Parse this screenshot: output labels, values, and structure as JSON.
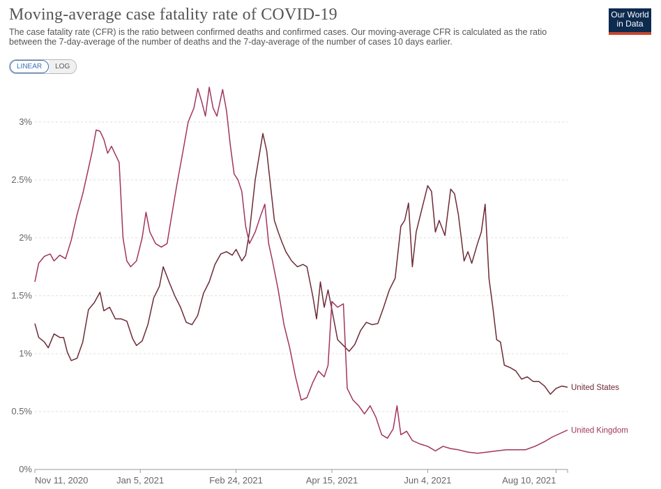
{
  "header": {
    "title": "Moving-average case fatality rate of COVID-19",
    "subtitle": "The case fatality rate (CFR) is the ratio between confirmed deaths and confirmed cases. Our moving-average CFR is calculated as the ratio between the 7-day-average of the number of deaths and the 7-day-average of the number of cases 10 days earlier.",
    "logo_line1": "Our World",
    "logo_line2": "in Data"
  },
  "scale_toggle": {
    "linear_label": "LINEAR",
    "log_label": "LOG",
    "selected": "LINEAR"
  },
  "colors": {
    "united_states": "#6b2a35",
    "united_kingdom": "#a1345f",
    "grid": "#dddddd",
    "axis_text": "#666666"
  },
  "chart_data": {
    "type": "line",
    "title": "Moving-average case fatality rate of COVID-19",
    "x_axis": {
      "start": "2020-11-11",
      "end": "2021-08-16",
      "ticks": [
        {
          "date": "2020-11-11",
          "label": "Nov 11, 2020"
        },
        {
          "date": "2021-01-05",
          "label": "Jan 5, 2021"
        },
        {
          "date": "2021-02-24",
          "label": "Feb 24, 2021"
        },
        {
          "date": "2021-04-15",
          "label": "Apr 15, 2021"
        },
        {
          "date": "2021-06-04",
          "label": "Jun 4, 2021"
        },
        {
          "date": "2021-08-10",
          "label": "Aug 10, 2021"
        }
      ]
    },
    "y_axis": {
      "ylim": [
        0,
        3.3
      ],
      "unit": "%",
      "ticks": [
        {
          "value": 0,
          "label": "0%"
        },
        {
          "value": 0.5,
          "label": "0.5%"
        },
        {
          "value": 1,
          "label": "1%"
        },
        {
          "value": 1.5,
          "label": "1.5%"
        },
        {
          "value": 2,
          "label": "2%"
        },
        {
          "value": 2.5,
          "label": "2.5%"
        },
        {
          "value": 3,
          "label": "3%"
        }
      ]
    },
    "grid": "horizontal-dashed",
    "legend": "line-end labels",
    "series": [
      {
        "name": "United States",
        "points": [
          [
            "2020-11-11",
            1.26
          ],
          [
            "2020-11-13",
            1.14
          ],
          [
            "2020-11-16",
            1.1
          ],
          [
            "2020-11-18",
            1.05
          ],
          [
            "2020-11-21",
            1.17
          ],
          [
            "2020-11-24",
            1.14
          ],
          [
            "2020-11-26",
            1.14
          ],
          [
            "2020-11-28",
            1.01
          ],
          [
            "2020-11-30",
            0.94
          ],
          [
            "2020-12-03",
            0.96
          ],
          [
            "2020-12-06",
            1.1
          ],
          [
            "2020-12-09",
            1.38
          ],
          [
            "2020-12-12",
            1.44
          ],
          [
            "2020-12-15",
            1.53
          ],
          [
            "2020-12-17",
            1.37
          ],
          [
            "2020-12-20",
            1.4
          ],
          [
            "2020-12-23",
            1.3
          ],
          [
            "2020-12-26",
            1.3
          ],
          [
            "2020-12-29",
            1.28
          ],
          [
            "2021-01-01",
            1.13
          ],
          [
            "2021-01-03",
            1.07
          ],
          [
            "2021-01-06",
            1.11
          ],
          [
            "2021-01-09",
            1.25
          ],
          [
            "2021-01-12",
            1.48
          ],
          [
            "2021-01-15",
            1.58
          ],
          [
            "2021-01-17",
            1.75
          ],
          [
            "2021-01-20",
            1.62
          ],
          [
            "2021-01-23",
            1.5
          ],
          [
            "2021-01-26",
            1.4
          ],
          [
            "2021-01-29",
            1.27
          ],
          [
            "2021-02-01",
            1.25
          ],
          [
            "2021-02-04",
            1.33
          ],
          [
            "2021-02-07",
            1.52
          ],
          [
            "2021-02-10",
            1.62
          ],
          [
            "2021-02-13",
            1.77
          ],
          [
            "2021-02-16",
            1.86
          ],
          [
            "2021-02-19",
            1.88
          ],
          [
            "2021-02-22",
            1.85
          ],
          [
            "2021-02-24",
            1.9
          ],
          [
            "2021-02-27",
            1.8
          ],
          [
            "2021-03-01",
            1.85
          ],
          [
            "2021-03-03",
            2.05
          ],
          [
            "2021-03-06",
            2.5
          ],
          [
            "2021-03-08",
            2.7
          ],
          [
            "2021-03-10",
            2.9
          ],
          [
            "2021-03-12",
            2.75
          ],
          [
            "2021-03-14",
            2.45
          ],
          [
            "2021-03-16",
            2.15
          ],
          [
            "2021-03-18",
            2.05
          ],
          [
            "2021-03-20",
            1.96
          ],
          [
            "2021-03-22",
            1.88
          ],
          [
            "2021-03-25",
            1.8
          ],
          [
            "2021-03-28",
            1.75
          ],
          [
            "2021-03-31",
            1.77
          ],
          [
            "2021-04-02",
            1.75
          ],
          [
            "2021-04-05",
            1.5
          ],
          [
            "2021-04-07",
            1.3
          ],
          [
            "2021-04-09",
            1.62
          ],
          [
            "2021-04-11",
            1.4
          ],
          [
            "2021-04-13",
            1.55
          ],
          [
            "2021-04-15",
            1.38
          ],
          [
            "2021-04-18",
            1.12
          ],
          [
            "2021-04-21",
            1.07
          ],
          [
            "2021-04-24",
            1.02
          ],
          [
            "2021-04-27",
            1.08
          ],
          [
            "2021-04-30",
            1.2
          ],
          [
            "2021-05-03",
            1.27
          ],
          [
            "2021-05-06",
            1.25
          ],
          [
            "2021-05-09",
            1.26
          ],
          [
            "2021-05-12",
            1.4
          ],
          [
            "2021-05-15",
            1.55
          ],
          [
            "2021-05-18",
            1.65
          ],
          [
            "2021-05-21",
            2.1
          ],
          [
            "2021-05-23",
            2.15
          ],
          [
            "2021-05-25",
            2.3
          ],
          [
            "2021-05-27",
            1.75
          ],
          [
            "2021-05-29",
            2.05
          ],
          [
            "2021-06-01",
            2.25
          ],
          [
            "2021-06-04",
            2.45
          ],
          [
            "2021-06-06",
            2.4
          ],
          [
            "2021-06-08",
            2.05
          ],
          [
            "2021-06-10",
            2.15
          ],
          [
            "2021-06-13",
            2.02
          ],
          [
            "2021-06-16",
            2.42
          ],
          [
            "2021-06-18",
            2.38
          ],
          [
            "2021-06-20",
            2.2
          ],
          [
            "2021-06-23",
            1.8
          ],
          [
            "2021-06-25",
            1.88
          ],
          [
            "2021-06-27",
            1.78
          ],
          [
            "2021-06-30",
            1.95
          ],
          [
            "2021-07-02",
            2.05
          ],
          [
            "2021-07-04",
            2.29
          ],
          [
            "2021-07-06",
            1.65
          ],
          [
            "2021-07-08",
            1.4
          ],
          [
            "2021-07-10",
            1.12
          ],
          [
            "2021-07-12",
            1.1
          ],
          [
            "2021-07-14",
            0.9
          ],
          [
            "2021-07-17",
            0.88
          ],
          [
            "2021-07-20",
            0.85
          ],
          [
            "2021-07-23",
            0.78
          ],
          [
            "2021-07-26",
            0.8
          ],
          [
            "2021-07-29",
            0.76
          ],
          [
            "2021-08-01",
            0.76
          ],
          [
            "2021-08-04",
            0.72
          ],
          [
            "2021-08-07",
            0.65
          ],
          [
            "2021-08-10",
            0.7
          ],
          [
            "2021-08-13",
            0.72
          ],
          [
            "2021-08-16",
            0.71
          ]
        ]
      },
      {
        "name": "United Kingdom",
        "points": [
          [
            "2020-11-11",
            1.62
          ],
          [
            "2020-11-13",
            1.78
          ],
          [
            "2020-11-16",
            1.84
          ],
          [
            "2020-11-19",
            1.86
          ],
          [
            "2020-11-21",
            1.8
          ],
          [
            "2020-11-24",
            1.85
          ],
          [
            "2020-11-27",
            1.82
          ],
          [
            "2020-11-30",
            1.98
          ],
          [
            "2020-12-03",
            2.2
          ],
          [
            "2020-12-06",
            2.38
          ],
          [
            "2020-12-09",
            2.6
          ],
          [
            "2020-12-11",
            2.75
          ],
          [
            "2020-12-13",
            2.93
          ],
          [
            "2020-12-15",
            2.92
          ],
          [
            "2020-12-17",
            2.85
          ],
          [
            "2020-12-19",
            2.73
          ],
          [
            "2020-12-21",
            2.79
          ],
          [
            "2020-12-23",
            2.72
          ],
          [
            "2020-12-25",
            2.65
          ],
          [
            "2020-12-27",
            2.0
          ],
          [
            "2020-12-29",
            1.8
          ],
          [
            "2020-12-31",
            1.75
          ],
          [
            "2021-01-03",
            1.8
          ],
          [
            "2021-01-06",
            2.0
          ],
          [
            "2021-01-08",
            2.22
          ],
          [
            "2021-01-10",
            2.05
          ],
          [
            "2021-01-13",
            1.95
          ],
          [
            "2021-01-16",
            1.92
          ],
          [
            "2021-01-19",
            1.95
          ],
          [
            "2021-01-21",
            2.15
          ],
          [
            "2021-01-24",
            2.45
          ],
          [
            "2021-01-27",
            2.72
          ],
          [
            "2021-01-30",
            3.0
          ],
          [
            "2021-02-02",
            3.12
          ],
          [
            "2021-02-04",
            3.29
          ],
          [
            "2021-02-06",
            3.18
          ],
          [
            "2021-02-08",
            3.05
          ],
          [
            "2021-02-10",
            3.3
          ],
          [
            "2021-02-12",
            3.12
          ],
          [
            "2021-02-14",
            3.05
          ],
          [
            "2021-02-17",
            3.28
          ],
          [
            "2021-02-19",
            3.1
          ],
          [
            "2021-02-21",
            2.8
          ],
          [
            "2021-02-23",
            2.55
          ],
          [
            "2021-02-25",
            2.5
          ],
          [
            "2021-02-27",
            2.4
          ],
          [
            "2021-03-01",
            2.1
          ],
          [
            "2021-03-03",
            1.95
          ],
          [
            "2021-03-06",
            2.05
          ],
          [
            "2021-03-09",
            2.2
          ],
          [
            "2021-03-11",
            2.29
          ],
          [
            "2021-03-13",
            1.95
          ],
          [
            "2021-03-15",
            1.8
          ],
          [
            "2021-03-18",
            1.55
          ],
          [
            "2021-03-21",
            1.25
          ],
          [
            "2021-03-24",
            1.05
          ],
          [
            "2021-03-27",
            0.8
          ],
          [
            "2021-03-30",
            0.6
          ],
          [
            "2021-04-02",
            0.62
          ],
          [
            "2021-04-05",
            0.75
          ],
          [
            "2021-04-08",
            0.85
          ],
          [
            "2021-04-11",
            0.8
          ],
          [
            "2021-04-13",
            0.9
          ],
          [
            "2021-04-15",
            1.45
          ],
          [
            "2021-04-18",
            1.4
          ],
          [
            "2021-04-21",
            1.43
          ],
          [
            "2021-04-23",
            0.7
          ],
          [
            "2021-04-26",
            0.6
          ],
          [
            "2021-04-29",
            0.55
          ],
          [
            "2021-05-02",
            0.48
          ],
          [
            "2021-05-05",
            0.55
          ],
          [
            "2021-05-08",
            0.45
          ],
          [
            "2021-05-11",
            0.3
          ],
          [
            "2021-05-14",
            0.27
          ],
          [
            "2021-05-17",
            0.35
          ],
          [
            "2021-05-19",
            0.55
          ],
          [
            "2021-05-21",
            0.3
          ],
          [
            "2021-05-24",
            0.33
          ],
          [
            "2021-05-27",
            0.25
          ],
          [
            "2021-05-31",
            0.22
          ],
          [
            "2021-06-04",
            0.2
          ],
          [
            "2021-06-08",
            0.16
          ],
          [
            "2021-06-12",
            0.2
          ],
          [
            "2021-06-16",
            0.18
          ],
          [
            "2021-06-20",
            0.17
          ],
          [
            "2021-06-25",
            0.15
          ],
          [
            "2021-06-30",
            0.14
          ],
          [
            "2021-07-05",
            0.15
          ],
          [
            "2021-07-10",
            0.16
          ],
          [
            "2021-07-15",
            0.17
          ],
          [
            "2021-07-20",
            0.17
          ],
          [
            "2021-07-25",
            0.17
          ],
          [
            "2021-07-30",
            0.2
          ],
          [
            "2021-08-04",
            0.24
          ],
          [
            "2021-08-08",
            0.28
          ],
          [
            "2021-08-12",
            0.31
          ],
          [
            "2021-08-16",
            0.34
          ]
        ]
      }
    ]
  }
}
